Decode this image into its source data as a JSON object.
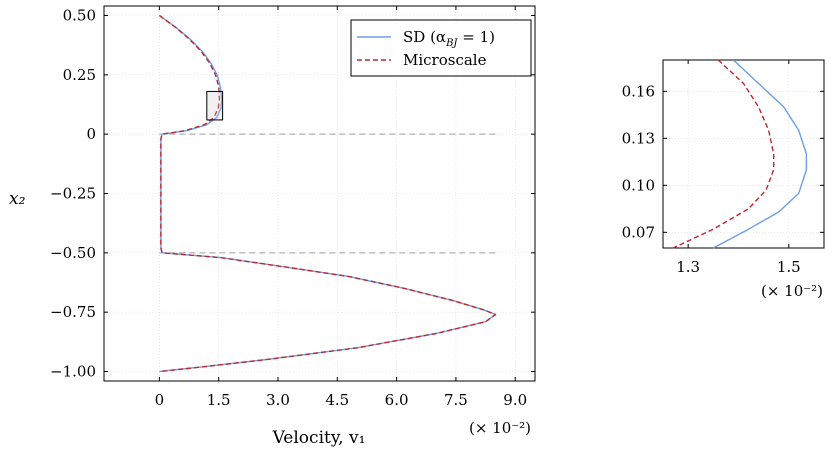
{
  "chart_data": [
    {
      "type": "line",
      "xlabel": "Velocity, v₁",
      "ylabel": "x₂",
      "x_multiplier_label": "(× 10⁻²)",
      "xlim": [
        -1.4,
        9.5
      ],
      "ylim": [
        -1.04,
        0.54
      ],
      "xticks": [
        0,
        1.5,
        3.0,
        4.5,
        6.0,
        7.5,
        9.0
      ],
      "xtick_labels": [
        "0",
        "1.5",
        "3.0",
        "4.5",
        "6.0",
        "7.5",
        "9.0"
      ],
      "yticks": [
        0.5,
        0.25,
        0,
        -0.25,
        -0.5,
        -0.75,
        -1.0
      ],
      "ytick_labels": [
        "0.50",
        "0.25",
        "0",
        "−0.25",
        "−0.50",
        "−0.75",
        "−1.00"
      ],
      "grid": true,
      "legend_position": "top-right",
      "reference_lines": [
        0,
        -0.5
      ],
      "zoom_box": {
        "x": [
          1.2,
          1.6
        ],
        "y": [
          0.06,
          0.18
        ]
      },
      "series": [
        {
          "name": "SD (α",
          "name_sub": "BJ",
          "name_tail": " = 1)",
          "color": "#6d9eeb",
          "dash": "solid",
          "points": [
            [
              0.0,
              0.5
            ],
            [
              0.42,
              0.45
            ],
            [
              0.78,
              0.4
            ],
            [
              1.08,
              0.35
            ],
            [
              1.3,
              0.3
            ],
            [
              1.46,
              0.25
            ],
            [
              1.54,
              0.2
            ],
            [
              1.58,
              0.15
            ],
            [
              1.56,
              0.11
            ],
            [
              1.45,
              0.07
            ],
            [
              1.2,
              0.04
            ],
            [
              0.7,
              0.015
            ],
            [
              0.07,
              0.0
            ],
            [
              0.04,
              -0.02
            ],
            [
              0.04,
              -0.2
            ],
            [
              0.04,
              -0.48
            ],
            [
              0.07,
              -0.5
            ],
            [
              1.55,
              -0.52
            ],
            [
              3.2,
              -0.56
            ],
            [
              4.8,
              -0.6
            ],
            [
              6.2,
              -0.65
            ],
            [
              7.4,
              -0.7
            ],
            [
              8.2,
              -0.74
            ],
            [
              8.5,
              -0.76
            ],
            [
              8.25,
              -0.79
            ],
            [
              7.0,
              -0.84
            ],
            [
              5.0,
              -0.9
            ],
            [
              2.7,
              -0.95
            ],
            [
              1.1,
              -0.98
            ],
            [
              0.0,
              -1.0
            ]
          ]
        },
        {
          "name": "Microscale",
          "color": "#c0272d",
          "dash": "dashed",
          "points": [
            [
              0.0,
              0.5
            ],
            [
              0.41,
              0.45
            ],
            [
              0.76,
              0.4
            ],
            [
              1.05,
              0.35
            ],
            [
              1.27,
              0.3
            ],
            [
              1.42,
              0.25
            ],
            [
              1.5,
              0.2
            ],
            [
              1.52,
              0.15
            ],
            [
              1.49,
              0.11
            ],
            [
              1.38,
              0.07
            ],
            [
              1.14,
              0.04
            ],
            [
              0.66,
              0.015
            ],
            [
              0.07,
              0.0
            ],
            [
              0.04,
              -0.02
            ],
            [
              0.04,
              -0.2
            ],
            [
              0.04,
              -0.48
            ],
            [
              0.07,
              -0.5
            ],
            [
              1.55,
              -0.52
            ],
            [
              3.2,
              -0.56
            ],
            [
              4.8,
              -0.6
            ],
            [
              6.2,
              -0.65
            ],
            [
              7.4,
              -0.7
            ],
            [
              8.2,
              -0.74
            ],
            [
              8.5,
              -0.76
            ],
            [
              8.25,
              -0.79
            ],
            [
              7.0,
              -0.84
            ],
            [
              5.0,
              -0.9
            ],
            [
              2.7,
              -0.95
            ],
            [
              1.1,
              -0.98
            ],
            [
              0.0,
              -1.0
            ]
          ]
        }
      ]
    },
    {
      "type": "line",
      "x_multiplier_label": "(× 10⁻²)",
      "xlim": [
        1.25,
        1.57
      ],
      "ylim": [
        0.06,
        0.18
      ],
      "xticks": [
        1.3,
        1.5
      ],
      "xtick_labels": [
        "1.3",
        "1.5"
      ],
      "yticks": [
        0.07,
        0.1,
        0.13,
        0.16
      ],
      "ytick_labels": [
        "0.07",
        "0.10",
        "0.13",
        "0.16"
      ],
      "grid": true,
      "series": [
        {
          "color": "#6d9eeb",
          "dash": "solid",
          "points": [
            [
              1.39,
              0.18
            ],
            [
              1.44,
              0.165
            ],
            [
              1.49,
              0.15
            ],
            [
              1.52,
              0.135
            ],
            [
              1.535,
              0.12
            ],
            [
              1.535,
              0.11
            ],
            [
              1.52,
              0.095
            ],
            [
              1.48,
              0.083
            ],
            [
              1.42,
              0.072
            ],
            [
              1.35,
              0.06
            ]
          ]
        },
        {
          "color": "#c0272d",
          "dash": "dashed",
          "points": [
            [
              1.36,
              0.18
            ],
            [
              1.41,
              0.165
            ],
            [
              1.44,
              0.15
            ],
            [
              1.46,
              0.135
            ],
            [
              1.47,
              0.12
            ],
            [
              1.47,
              0.11
            ],
            [
              1.455,
              0.097
            ],
            [
              1.42,
              0.085
            ],
            [
              1.35,
              0.072
            ],
            [
              1.27,
              0.06
            ]
          ]
        }
      ]
    }
  ]
}
